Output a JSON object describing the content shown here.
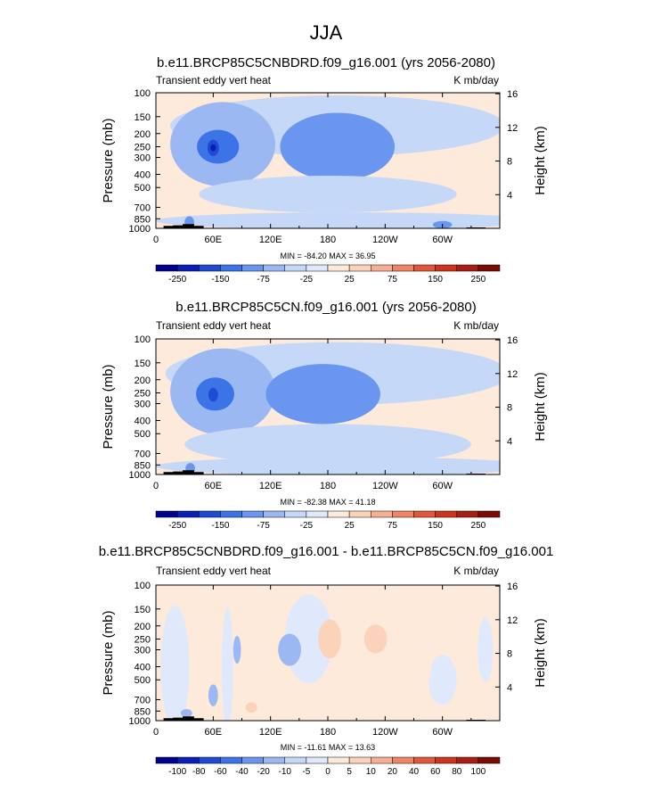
{
  "figure": {
    "title": "JJA"
  },
  "colors": {
    "panel_scale": [
      "#00008c",
      "#0a1fb4",
      "#1e4bd2",
      "#3c73e6",
      "#6b96ef",
      "#9bb8f3",
      "#c6d8f8",
      "#dfe9fb",
      "#fdeadb",
      "#fbd3bb",
      "#f5b093",
      "#ee8565",
      "#e0583b",
      "#cb3520",
      "#a81e12",
      "#7a0b07"
    ],
    "diff_scale": [
      "#00008c",
      "#0a1fb4",
      "#1e4bd2",
      "#3c73e6",
      "#6b96ef",
      "#9bb8f3",
      "#c6d8f8",
      "#dfe9fb",
      "#fdeadb",
      "#fbd3bb",
      "#f5b093",
      "#ee8565",
      "#e0583b",
      "#cb3520",
      "#a81e12",
      "#7a0b07"
    ],
    "terrain": "#000000"
  },
  "chart_data": [
    {
      "type": "heatmap",
      "title": "b.e11.BRCP85C5CNBDRD.f09_g16.001 (yrs 2056-2080)",
      "left_label": "Transient eddy vert heat",
      "right_label": "K mb/day",
      "ylabel": "Pressure (mb)",
      "y2label": "Height (km)",
      "xticks": [
        "0",
        "60E",
        "120E",
        "180",
        "120W",
        "60W"
      ],
      "yticks": [
        "100",
        "150",
        "200",
        "250",
        "300",
        "400",
        "500",
        "700",
        "850",
        "1000"
      ],
      "y2ticks": [
        "4",
        "8",
        "12",
        "16"
      ],
      "xlim": [
        0,
        360
      ],
      "ylim": [
        1000,
        100
      ],
      "minmax": "MIN = -84.20  MAX = 36.95",
      "min": -84.2,
      "max": 36.95,
      "colorbar_labels": [
        "-250",
        "-150",
        "-75",
        "-25",
        "25",
        "75",
        "150",
        "250"
      ],
      "features": [
        {
          "kind": "background",
          "value": 5
        },
        {
          "kind": "blob",
          "lon": 190,
          "p": 175,
          "rlon": 175,
          "rp": 105,
          "value": -10
        },
        {
          "kind": "blob",
          "lon": 70,
          "p": 240,
          "rlon": 55,
          "rp": 180,
          "value": -20
        },
        {
          "kind": "blob",
          "lon": 190,
          "p": 250,
          "rlon": 60,
          "rp": 130,
          "value": -35
        },
        {
          "kind": "blob",
          "lon": 65,
          "p": 250,
          "rlon": 22,
          "rp": 70,
          "value": -70
        },
        {
          "kind": "blob",
          "lon": 60,
          "p": 255,
          "rlon": 6,
          "rp": 35,
          "value": -110
        },
        {
          "kind": "blob",
          "lon": 60,
          "p": 255,
          "rlon": 3,
          "rp": 15,
          "value": -160
        },
        {
          "kind": "blob",
          "lon": 180,
          "p": 560,
          "rlon": 135,
          "rp": 170,
          "value": -10
        },
        {
          "kind": "blob",
          "lon": 200,
          "p": 880,
          "rlon": 200,
          "rp": 130,
          "value": -10
        },
        {
          "kind": "blob",
          "lon": 35,
          "p": 900,
          "rlon": 5,
          "rp": 90,
          "value": -40
        },
        {
          "kind": "blob",
          "lon": 300,
          "p": 940,
          "rlon": 10,
          "rp": 60,
          "value": -35
        }
      ],
      "terrain": [
        [
          8,
          1000
        ],
        [
          8,
          960
        ],
        [
          18,
          960
        ],
        [
          18,
          950
        ],
        [
          28,
          950
        ],
        [
          28,
          930
        ],
        [
          40,
          930
        ],
        [
          40,
          960
        ],
        [
          50,
          960
        ],
        [
          50,
          1000
        ]
      ]
    },
    {
      "type": "heatmap",
      "title": "b.e11.BRCP85C5CN.f09_g16.001 (yrs 2056-2080)",
      "left_label": "Transient eddy vert heat",
      "right_label": "K mb/day",
      "ylabel": "Pressure (mb)",
      "y2label": "Height (km)",
      "xticks": [
        "0",
        "60E",
        "120E",
        "180",
        "120W",
        "60W"
      ],
      "yticks": [
        "100",
        "150",
        "200",
        "250",
        "300",
        "400",
        "500",
        "700",
        "850",
        "1000"
      ],
      "y2ticks": [
        "4",
        "8",
        "12",
        "16"
      ],
      "xlim": [
        0,
        360
      ],
      "ylim": [
        1000,
        100
      ],
      "minmax": "MIN = -82.38  MAX = 41.18",
      "min": -82.38,
      "max": 41.18,
      "colorbar_labels": [
        "-250",
        "-150",
        "-75",
        "-25",
        "25",
        "75",
        "150",
        "250"
      ],
      "features": [
        {
          "kind": "background",
          "value": 5
        },
        {
          "kind": "blob",
          "lon": 190,
          "p": 180,
          "rlon": 180,
          "rp": 110,
          "value": -10
        },
        {
          "kind": "blob",
          "lon": 70,
          "p": 245,
          "rlon": 55,
          "rp": 190,
          "value": -20
        },
        {
          "kind": "blob",
          "lon": 175,
          "p": 255,
          "rlon": 60,
          "rp": 120,
          "value": -35
        },
        {
          "kind": "blob",
          "lon": 62,
          "p": 255,
          "rlon": 20,
          "rp": 70,
          "value": -70
        },
        {
          "kind": "blob",
          "lon": 60,
          "p": 258,
          "rlon": 5,
          "rp": 30,
          "value": -110
        },
        {
          "kind": "blob",
          "lon": 180,
          "p": 600,
          "rlon": 150,
          "rp": 200,
          "value": -10
        },
        {
          "kind": "blob",
          "lon": 200,
          "p": 870,
          "rlon": 200,
          "rp": 140,
          "value": -10
        },
        {
          "kind": "blob",
          "lon": 36,
          "p": 900,
          "rlon": 5,
          "rp": 80,
          "value": -40
        }
      ],
      "terrain": [
        [
          8,
          1000
        ],
        [
          8,
          960
        ],
        [
          18,
          960
        ],
        [
          18,
          950
        ],
        [
          28,
          950
        ],
        [
          28,
          930
        ],
        [
          40,
          930
        ],
        [
          40,
          960
        ],
        [
          50,
          960
        ],
        [
          50,
          1000
        ]
      ]
    },
    {
      "type": "heatmap",
      "title": "b.e11.BRCP85C5CNBDRD.f09_g16.001 - b.e11.BRCP85C5CN.f09_g16.001",
      "left_label": "Transient eddy vert heat",
      "right_label": "K mb/day",
      "ylabel": "Pressure (mb)",
      "y2label": "Height (km)",
      "xticks": [
        "0",
        "60E",
        "120E",
        "180",
        "120W",
        "60W"
      ],
      "yticks": [
        "100",
        "150",
        "200",
        "250",
        "300",
        "400",
        "500",
        "700",
        "850",
        "1000"
      ],
      "y2ticks": [
        "4",
        "8",
        "12",
        "16"
      ],
      "xlim": [
        0,
        360
      ],
      "ylim": [
        1000,
        100
      ],
      "minmax": "MIN = -11.61  MAX = 13.63",
      "min": -11.61,
      "max": 13.63,
      "colorbar_labels": [
        "-100",
        "-80",
        "-60",
        "-40",
        "-20",
        "-10",
        "-5",
        "0",
        "5",
        "10",
        "20",
        "40",
        "60",
        "80",
        "100"
      ],
      "features": [
        {
          "kind": "background",
          "value": 1
        },
        {
          "kind": "blob",
          "lon": 20,
          "p": 400,
          "rlon": 15,
          "rp": 400,
          "value": -2
        },
        {
          "kind": "blob",
          "lon": 75,
          "p": 400,
          "rlon": 6,
          "rp": 350,
          "value": -2
        },
        {
          "kind": "blob",
          "lon": 160,
          "p": 250,
          "rlon": 25,
          "rp": 200,
          "value": -2
        },
        {
          "kind": "blob",
          "lon": 140,
          "p": 300,
          "rlon": 12,
          "rp": 80,
          "value": -6
        },
        {
          "kind": "blob",
          "lon": 60,
          "p": 650,
          "rlon": 5,
          "rp": 120,
          "value": -6
        },
        {
          "kind": "blob",
          "lon": 85,
          "p": 300,
          "rlon": 4,
          "rp": 70,
          "value": -6
        },
        {
          "kind": "blob",
          "lon": 300,
          "p": 500,
          "rlon": 15,
          "rp": 200,
          "value": -2
        },
        {
          "kind": "blob",
          "lon": 182,
          "p": 250,
          "rlon": 12,
          "rp": 80,
          "value": 7
        },
        {
          "kind": "blob",
          "lon": 230,
          "p": 250,
          "rlon": 12,
          "rp": 60,
          "value": 7
        },
        {
          "kind": "blob",
          "lon": 270,
          "p": 300,
          "rlon": 20,
          "rp": 250,
          "value": 2
        },
        {
          "kind": "blob",
          "lon": 100,
          "p": 800,
          "rlon": 6,
          "rp": 70,
          "value": 7
        },
        {
          "kind": "blob",
          "lon": 32,
          "p": 880,
          "rlon": 6,
          "rp": 60,
          "value": -6
        },
        {
          "kind": "blob",
          "lon": 345,
          "p": 300,
          "rlon": 8,
          "rp": 150,
          "value": -2
        }
      ],
      "terrain": [
        [
          8,
          1000
        ],
        [
          8,
          960
        ],
        [
          18,
          960
        ],
        [
          18,
          950
        ],
        [
          28,
          950
        ],
        [
          28,
          930
        ],
        [
          40,
          930
        ],
        [
          40,
          960
        ],
        [
          50,
          960
        ],
        [
          50,
          1000
        ]
      ]
    }
  ]
}
